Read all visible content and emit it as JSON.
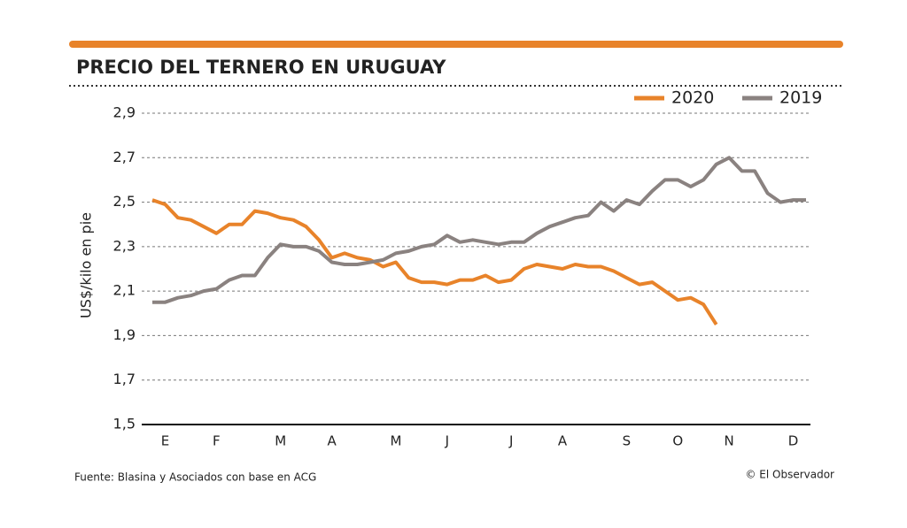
{
  "chart_data": {
    "type": "line",
    "title": "PRECIO DEL TERNERO EN URUGUAY",
    "y_label": "US$/kilo en pie",
    "source": "Fuente: Blasina y Asociados con base en ACG",
    "credit": "© El Observador",
    "categories": [
      null,
      "E",
      null,
      null,
      null,
      "F",
      null,
      null,
      null,
      null,
      "M",
      null,
      null,
      null,
      "A",
      null,
      null,
      null,
      null,
      "M",
      null,
      null,
      null,
      "J",
      null,
      null,
      null,
      null,
      "J",
      null,
      null,
      null,
      "A",
      null,
      null,
      null,
      null,
      "S",
      null,
      null,
      null,
      "O",
      null,
      null,
      null,
      "N",
      null,
      null,
      null,
      null,
      "D",
      null
    ],
    "series": [
      {
        "name": "2020",
        "color": "#e8832a",
        "values": [
          2.51,
          2.49,
          2.43,
          2.42,
          2.39,
          2.36,
          2.4,
          2.4,
          2.46,
          2.45,
          2.43,
          2.42,
          2.39,
          2.33,
          2.25,
          2.27,
          2.25,
          2.24,
          2.21,
          2.23,
          2.16,
          2.14,
          2.14,
          2.13,
          2.15,
          2.15,
          2.17,
          2.14,
          2.15,
          2.2,
          2.22,
          2.21,
          2.2,
          2.22,
          2.21,
          2.21,
          2.19,
          2.16,
          2.13,
          2.14,
          2.1,
          2.06,
          2.07,
          2.04,
          1.95,
          null,
          null,
          null,
          null,
          null,
          null,
          null
        ]
      },
      {
        "name": "2019",
        "color": "#8a8280",
        "values": [
          2.05,
          2.05,
          2.07,
          2.08,
          2.1,
          2.11,
          2.15,
          2.17,
          2.17,
          2.25,
          2.31,
          2.3,
          2.3,
          2.28,
          2.23,
          2.22,
          2.22,
          2.23,
          2.24,
          2.27,
          2.28,
          2.3,
          2.31,
          2.35,
          2.32,
          2.33,
          2.32,
          2.31,
          2.32,
          2.32,
          2.36,
          2.39,
          2.41,
          2.43,
          2.44,
          2.5,
          2.46,
          2.51,
          2.49,
          2.55,
          2.6,
          2.6,
          2.57,
          2.6,
          2.67,
          2.7,
          2.64,
          2.64,
          2.54,
          2.5,
          2.51,
          2.51
        ]
      }
    ],
    "ylim": [
      1.5,
      2.9
    ],
    "yticks": [
      {
        "value": 1.5,
        "label": "1,5"
      },
      {
        "value": 1.7,
        "label": "1,7"
      },
      {
        "value": 1.9,
        "label": "1,9"
      },
      {
        "value": 2.1,
        "label": "2,1"
      },
      {
        "value": 2.3,
        "label": "2,3"
      },
      {
        "value": 2.5,
        "label": "2,5"
      },
      {
        "value": 2.7,
        "label": "2,7"
      },
      {
        "value": 2.9,
        "label": "2,9"
      }
    ],
    "grid": true,
    "legend": "top-right"
  }
}
